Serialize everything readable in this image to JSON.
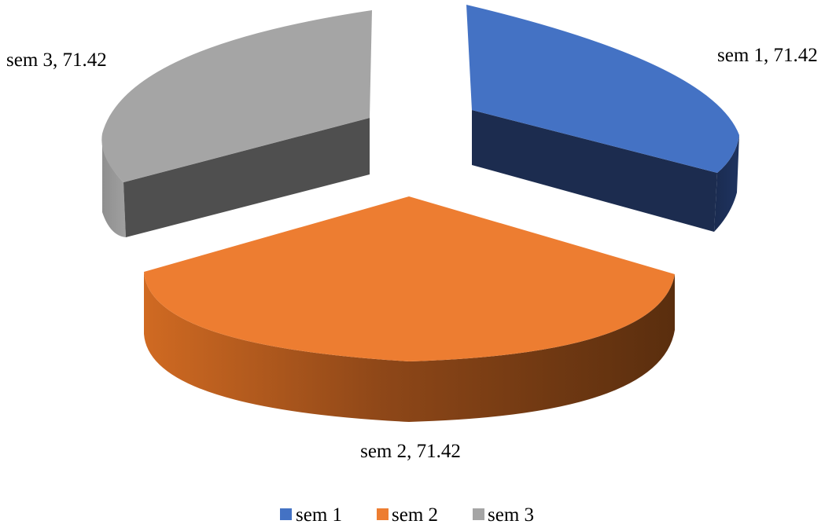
{
  "chart_data": {
    "type": "pie",
    "style": "3d-exploded",
    "title": "",
    "categories": [
      "sem 1",
      "sem 2",
      "sem 3"
    ],
    "values": [
      71.42,
      71.42,
      71.42
    ],
    "colors": [
      "#4472C4",
      "#ED7D31",
      "#A5A5A5"
    ],
    "data_labels": [
      "sem 1, 71.42",
      "sem 2, 71.42",
      "sem 3, 71.42"
    ],
    "legend": {
      "position": "bottom",
      "entries": [
        "sem 1",
        "sem 2",
        "sem 3"
      ]
    }
  }
}
